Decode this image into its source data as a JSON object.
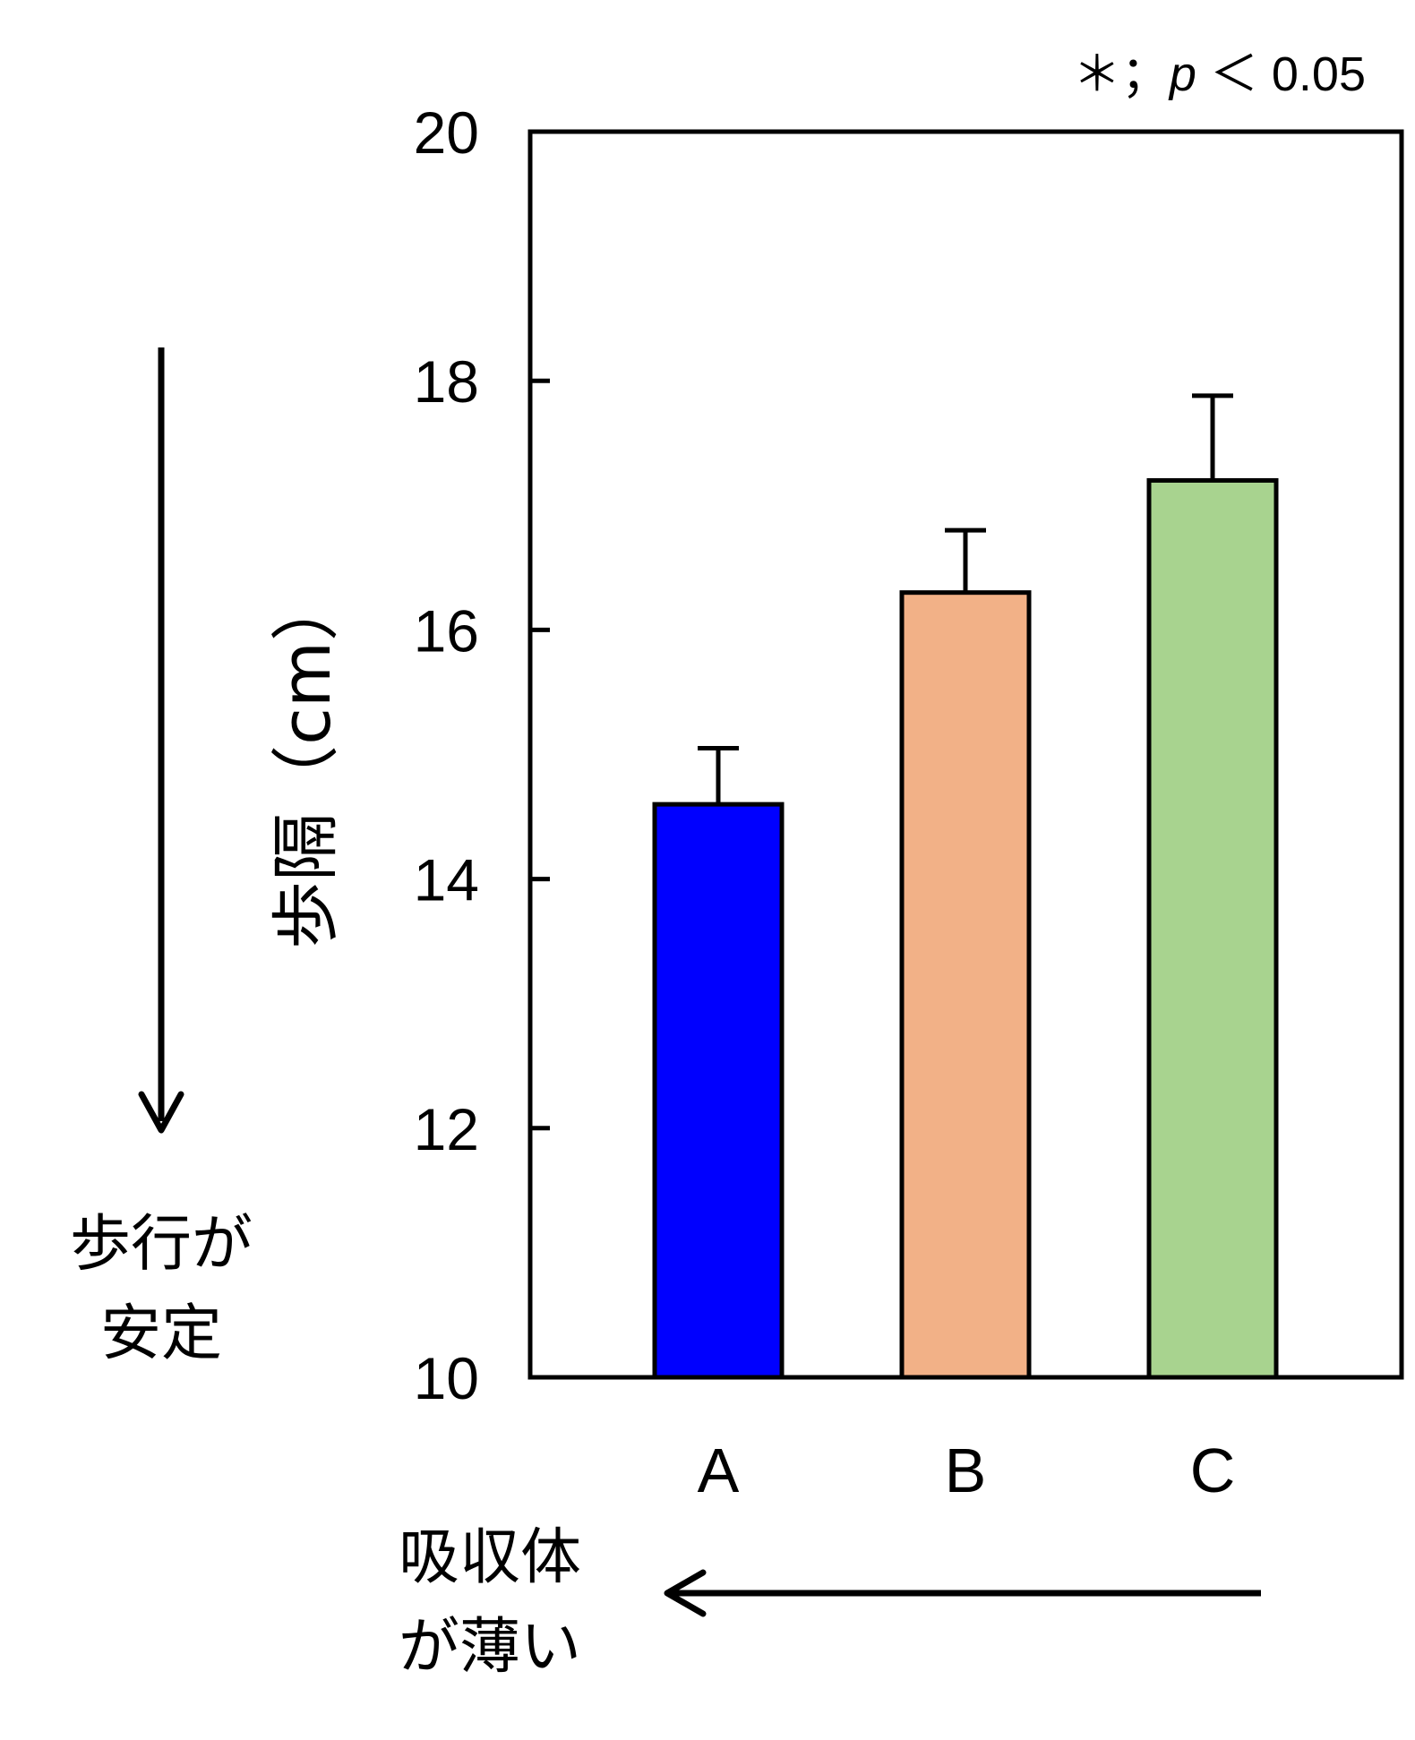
{
  "chart_data": {
    "type": "bar",
    "categories": [
      "A",
      "B",
      "C"
    ],
    "values": [
      14.6,
      16.3,
      17.2
    ],
    "errors": [
      0.45,
      0.5,
      0.68
    ],
    "colors": [
      "#0000ff",
      "#f2b187",
      "#a8d38f"
    ],
    "ylabel": "歩隔（cm）",
    "ylim": [
      10,
      20
    ],
    "yticks": [
      10,
      12,
      14,
      16,
      18,
      20
    ],
    "grid": false,
    "significance_note": {
      "symbol": "＊；",
      "p": "p",
      "rest": " ＜ 0.05"
    },
    "annotations": {
      "stable": [
        "歩行が",
        "安定"
      ],
      "absorber": [
        "吸収体",
        "が薄い"
      ]
    }
  }
}
